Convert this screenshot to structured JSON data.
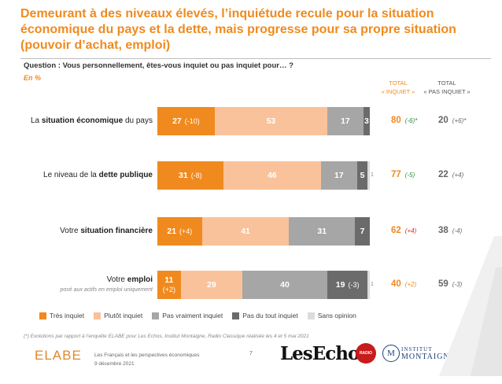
{
  "header": {
    "title": "Demeurant à des niveaux élevés, l’inquiétude recule pour la situation économique du pays et la dette, mais progresse pour sa propre situation (pouvoir d’achat, emploi)",
    "question": "Question : Vous personnellement, êtes-vous inquiet ou pas inquiet pour… ?",
    "unit": "En %",
    "total_inquiet_header": "TOTAL\n« INQUIET »",
    "total_pas_inquiet_header": "TOTAL\n« PAS INQUIET »"
  },
  "chart_data": {
    "type": "bar",
    "orientation": "horizontal",
    "stacked": true,
    "unit": "%",
    "categories_rich": [
      {
        "pre": "La ",
        "bold": "situation économique",
        "post": " du pays",
        "sub": ""
      },
      {
        "pre": "Le niveau de la ",
        "bold": "dette publique",
        "post": "",
        "sub": ""
      },
      {
        "pre": "Votre ",
        "bold": "situation financière",
        "post": "",
        "sub": ""
      },
      {
        "pre": "Votre ",
        "bold": "emploi",
        "post": "",
        "sub": "posé aux actifs en emploi uniquement"
      }
    ],
    "series": [
      {
        "name": "Très inquiet",
        "color": "#f08a1e",
        "text_color": "#ffffff",
        "values": [
          27,
          31,
          21,
          11
        ],
        "changes": [
          "(-10)",
          "(-8)",
          "(+4)",
          "(+2)"
        ]
      },
      {
        "name": "Plutôt inquiet",
        "color": "#f9c29a",
        "text_color": "#ffffff",
        "values": [
          53,
          46,
          41,
          29
        ],
        "changes": [
          "",
          "",
          "",
          ""
        ]
      },
      {
        "name": "Pas vraiment inquiet",
        "color": "#a6a6a6",
        "text_color": "#ffffff",
        "values": [
          17,
          17,
          31,
          40
        ],
        "changes": [
          "",
          "",
          "",
          ""
        ]
      },
      {
        "name": "Pas du tout inquiet",
        "color": "#6b6b6b",
        "text_color": "#ffffff",
        "values": [
          3,
          5,
          7,
          19
        ],
        "changes": [
          "",
          "",
          "",
          "(-3)"
        ]
      },
      {
        "name": "Sans opinion",
        "color": "#dcdcdc",
        "text_color": "#888888",
        "values": [
          null,
          1,
          null,
          1
        ],
        "changes": [
          "",
          "",
          "",
          ""
        ]
      }
    ],
    "totals": {
      "inquiet": [
        80,
        77,
        62,
        40
      ],
      "inquiet_changes": [
        "(-6)*",
        "(-5)",
        "(+4)",
        "(+2)"
      ],
      "inquiet_change_colors": [
        "#2e8b3a",
        "#2e8b3a",
        "#e0261b",
        "#f08a1e"
      ],
      "pas_inquiet": [
        20,
        22,
        38,
        59
      ],
      "pas_inquiet_changes": [
        "(+6)*",
        "(+4)",
        "(-4)",
        "(-3)"
      ]
    },
    "xlim": [
      0,
      100
    ]
  },
  "legend_title": "",
  "footnote": "(*) Evolutions par rapport à l’enquête ELABE pour Les Echos, Institut Montaigne, Radio Classique réalisée les 4 et 5 mai 2021",
  "footer": {
    "elabe_logo": "ELABE",
    "source_line1": "Les Français et les perspectives économiques",
    "source_line2": "9 décembre 2021",
    "page_number": "7",
    "lesechos_logo": "LesEchos",
    "radio_logo": "RADIO CLASSIQUE",
    "montaigne_mark": "M",
    "montaigne_line1": "INSTITUT",
    "montaigne_line2": "MONTAIGNE"
  },
  "colors": {
    "accent": "#f08a1e"
  }
}
